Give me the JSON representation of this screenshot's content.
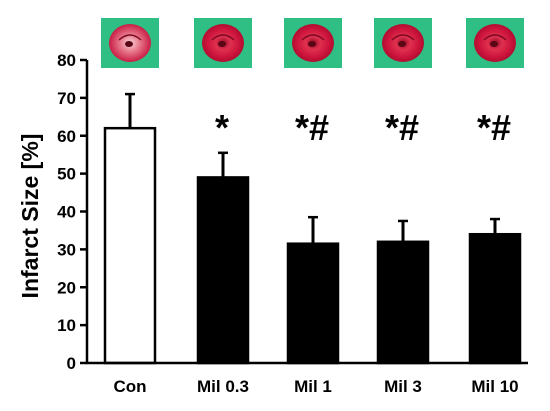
{
  "chart_data": {
    "type": "bar",
    "categories": [
      "Con",
      "Mil 0.3",
      "Mil 1",
      "Mil 3",
      "Mil 10"
    ],
    "values": [
      62,
      49,
      31.5,
      32,
      34
    ],
    "errors": [
      9,
      6.5,
      7,
      5.5,
      4
    ],
    "significance": [
      "",
      "*",
      "*#",
      "*#",
      "*#"
    ],
    "ylabel": "Infarct Size [%]",
    "xlabel": "",
    "title": "",
    "ylim": [
      0,
      80
    ],
    "yticks": [
      0,
      10,
      20,
      30,
      40,
      50,
      60,
      70,
      80
    ],
    "bar_fill": [
      "#ffffff",
      "#000000",
      "#000000",
      "#000000",
      "#000000"
    ],
    "bar_stroke": "#000000",
    "thumbnail_background": "#2fbf84",
    "thumbnail_tissue": "#d8143f",
    "grid": false,
    "legend": "none"
  }
}
